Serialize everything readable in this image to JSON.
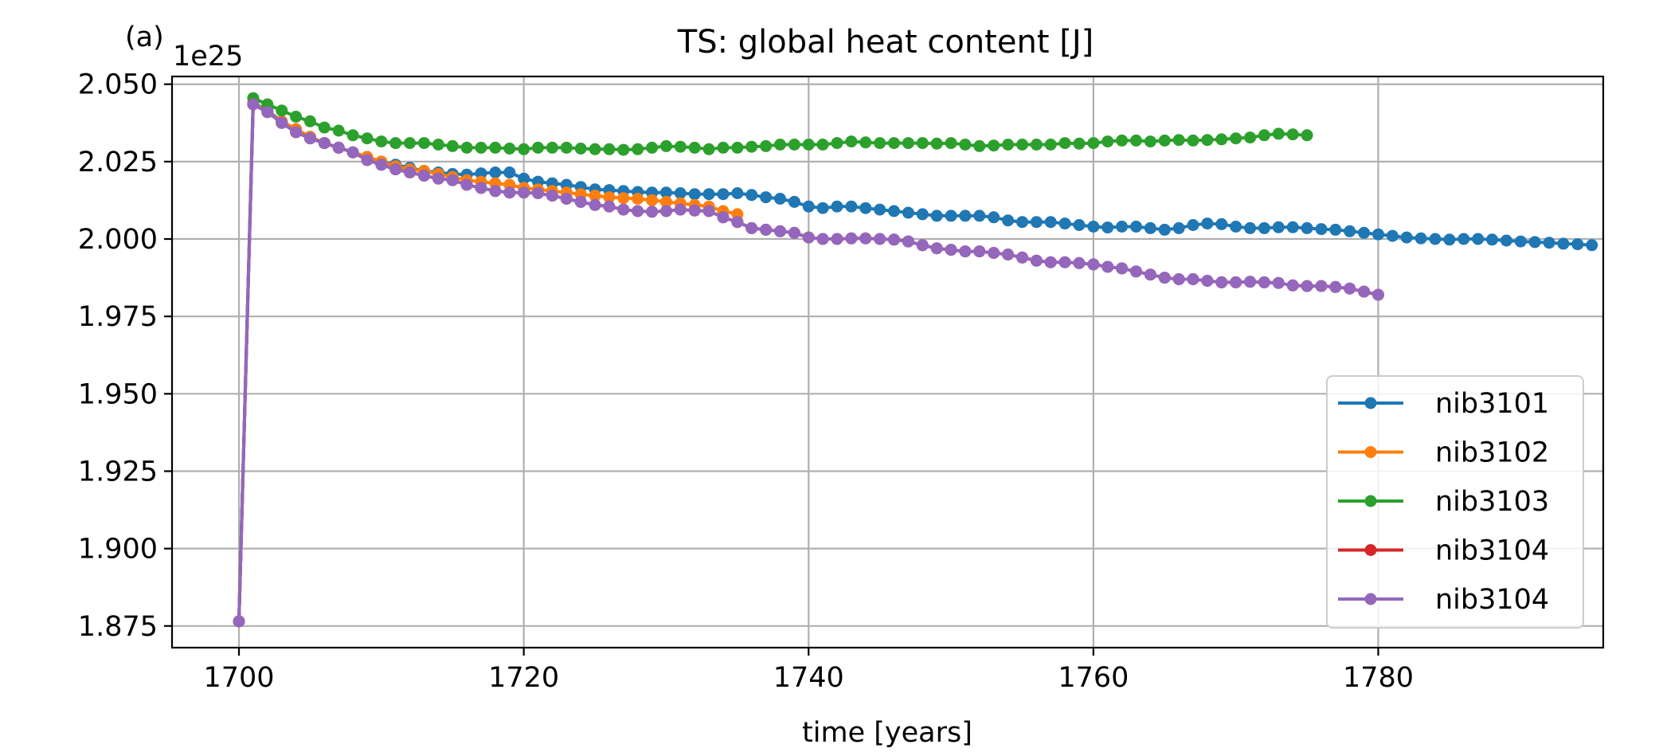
{
  "chart_data": {
    "type": "line",
    "panel_label": "(a)",
    "title": "TS: global heat content [J]",
    "xlabel": "time [years]",
    "ylabel": "",
    "y_offset_label": "1e25",
    "xlim": [
      1695.3,
      1795.8
    ],
    "ylim": [
      1.868,
      2.0525
    ],
    "x_ticks": [
      1700,
      1720,
      1740,
      1760,
      1780
    ],
    "x_tick_labels": [
      "1700",
      "1720",
      "1740",
      "1760",
      "1780"
    ],
    "y_ticks": [
      1.875,
      1.9,
      1.925,
      1.95,
      1.975,
      2.0,
      2.025,
      2.05
    ],
    "y_tick_labels": [
      "1.875",
      "1.900",
      "1.925",
      "1.950",
      "1.975",
      "2.000",
      "2.025",
      "2.050"
    ],
    "grid": true,
    "legend_position": "lower-right",
    "marker": "circle",
    "series": [
      {
        "name": "nib3101",
        "color": "#1f77b4",
        "x": [
          1700,
          1701,
          1702,
          1703,
          1704,
          1705,
          1706,
          1707,
          1708,
          1709,
          1710,
          1711,
          1712,
          1713,
          1714,
          1715,
          1716,
          1717,
          1718,
          1719,
          1720,
          1721,
          1722,
          1723,
          1724,
          1725,
          1726,
          1727,
          1728,
          1729,
          1730,
          1731,
          1732,
          1733,
          1734,
          1735,
          1736,
          1737,
          1738,
          1739,
          1740,
          1741,
          1742,
          1743,
          1744,
          1745,
          1746,
          1747,
          1748,
          1749,
          1750,
          1751,
          1752,
          1753,
          1754,
          1755,
          1756,
          1757,
          1758,
          1759,
          1760,
          1761,
          1762,
          1763,
          1764,
          1765,
          1766,
          1767,
          1768,
          1769,
          1770,
          1771,
          1772,
          1773,
          1774,
          1775,
          1776,
          1777,
          1778,
          1779,
          1780,
          1781,
          1782,
          1783,
          1784,
          1785,
          1786,
          1787,
          1788,
          1789,
          1790,
          1791,
          1792,
          1793,
          1794,
          1795
        ],
        "values": [
          1.8765,
          2.044,
          2.0415,
          2.038,
          2.0355,
          2.033,
          2.031,
          2.0295,
          2.028,
          2.0265,
          2.025,
          2.024,
          2.023,
          2.022,
          2.0215,
          2.021,
          2.0208,
          2.0212,
          2.0215,
          2.0215,
          2.0195,
          2.0185,
          2.018,
          2.0175,
          2.0168,
          2.016,
          2.0158,
          2.0155,
          2.0152,
          2.015,
          2.015,
          2.0148,
          2.0145,
          2.0145,
          2.0145,
          2.0148,
          2.0142,
          2.0135,
          2.013,
          2.012,
          2.0105,
          2.01,
          2.0105,
          2.0105,
          2.01,
          2.0095,
          2.009,
          2.0085,
          2.008,
          2.0075,
          2.0075,
          2.0075,
          2.0075,
          2.007,
          2.006,
          2.0055,
          2.0055,
          2.0055,
          2.005,
          2.0045,
          2.004,
          2.0037,
          2.004,
          2.004,
          2.0035,
          2.003,
          2.0035,
          2.0045,
          2.005,
          2.0048,
          2.004,
          2.0035,
          2.0035,
          2.0038,
          2.0038,
          2.0035,
          2.0032,
          2.003,
          2.0025,
          2.002,
          2.0015,
          2.001,
          2.0005,
          2.0002,
          2.0,
          1.9998,
          2.0,
          2.0,
          1.9998,
          1.9995,
          1.9992,
          1.999,
          1.9988,
          1.9985,
          1.9983,
          1.998
        ]
      },
      {
        "name": "nib3102",
        "color": "#ff7f0e",
        "x": [
          1700,
          1701,
          1702,
          1703,
          1704,
          1705,
          1706,
          1707,
          1708,
          1709,
          1710,
          1711,
          1712,
          1713,
          1714,
          1715,
          1716,
          1717,
          1718,
          1719,
          1720,
          1721,
          1722,
          1723,
          1724,
          1725,
          1726,
          1727,
          1728,
          1729,
          1730,
          1731,
          1732,
          1733,
          1734,
          1735
        ],
        "values": [
          1.8765,
          2.044,
          2.041,
          2.038,
          2.0355,
          2.033,
          2.031,
          2.0295,
          2.028,
          2.0265,
          2.025,
          2.0235,
          2.0225,
          2.022,
          2.021,
          2.02,
          2.019,
          2.0185,
          2.018,
          2.0175,
          2.0165,
          2.016,
          2.0155,
          2.015,
          2.0145,
          2.014,
          2.0135,
          2.0132,
          2.013,
          2.0125,
          2.012,
          2.0115,
          2.011,
          2.0105,
          2.009,
          2.008
        ]
      },
      {
        "name": "nib3103",
        "color": "#2ca02c",
        "x": [
          1700,
          1701,
          1702,
          1703,
          1704,
          1705,
          1706,
          1707,
          1708,
          1709,
          1710,
          1711,
          1712,
          1713,
          1714,
          1715,
          1716,
          1717,
          1718,
          1719,
          1720,
          1721,
          1722,
          1723,
          1724,
          1725,
          1726,
          1727,
          1728,
          1729,
          1730,
          1731,
          1732,
          1733,
          1734,
          1735,
          1736,
          1737,
          1738,
          1739,
          1740,
          1741,
          1742,
          1743,
          1744,
          1745,
          1746,
          1747,
          1748,
          1749,
          1750,
          1751,
          1752,
          1753,
          1754,
          1755,
          1756,
          1757,
          1758,
          1759,
          1760,
          1761,
          1762,
          1763,
          1764,
          1765,
          1766,
          1767,
          1768,
          1769,
          1770,
          1771,
          1772,
          1773,
          1774,
          1775
        ],
        "values": [
          1.8765,
          2.0455,
          2.0435,
          2.0415,
          2.0395,
          2.038,
          2.036,
          2.035,
          2.0335,
          2.0325,
          2.0315,
          2.031,
          2.031,
          2.031,
          2.0305,
          2.03,
          2.0295,
          2.0295,
          2.0295,
          2.0292,
          2.029,
          2.0295,
          2.0295,
          2.0295,
          2.0292,
          2.029,
          2.029,
          2.0288,
          2.029,
          2.0295,
          2.03,
          2.0298,
          2.0295,
          2.029,
          2.0295,
          2.0295,
          2.0298,
          2.03,
          2.0305,
          2.0305,
          2.0305,
          2.0305,
          2.031,
          2.0315,
          2.0312,
          2.031,
          2.031,
          2.031,
          2.031,
          2.0308,
          2.031,
          2.0305,
          2.03,
          2.0302,
          2.0305,
          2.0305,
          2.0305,
          2.0305,
          2.031,
          2.0308,
          2.031,
          2.0315,
          2.0318,
          2.0318,
          2.0315,
          2.0318,
          2.032,
          2.0318,
          2.032,
          2.0322,
          2.0325,
          2.0328,
          2.0335,
          2.034,
          2.0338,
          2.0335
        ]
      },
      {
        "name": "nib3104",
        "color": "#d62728",
        "x": [
          1700,
          1701,
          1702,
          1703,
          1704,
          1705,
          1706,
          1707,
          1708,
          1709,
          1710,
          1711,
          1712,
          1713,
          1714,
          1715,
          1716,
          1717,
          1718,
          1719,
          1720,
          1721,
          1722,
          1723,
          1724,
          1725,
          1726,
          1727,
          1728,
          1729,
          1730,
          1731,
          1732,
          1733,
          1734,
          1735,
          1736,
          1737,
          1738,
          1739,
          1740,
          1741,
          1742,
          1743,
          1744,
          1745,
          1746,
          1747,
          1748,
          1749,
          1750,
          1751,
          1752,
          1753,
          1754,
          1755,
          1756,
          1757,
          1758,
          1759,
          1760,
          1761,
          1762,
          1763,
          1764,
          1765,
          1766,
          1767,
          1768,
          1769,
          1770,
          1771,
          1772,
          1773,
          1774,
          1775,
          1776,
          1777,
          1778,
          1779,
          1780
        ],
        "values": [
          1.8765,
          2.0435,
          2.041,
          2.0375,
          2.0345,
          2.0325,
          2.031,
          2.0295,
          2.028,
          2.0255,
          2.024,
          2.0225,
          2.0215,
          2.0205,
          2.0195,
          2.019,
          2.0175,
          2.0165,
          2.0155,
          2.015,
          2.015,
          2.0148,
          2.014,
          2.013,
          2.012,
          2.011,
          2.0105,
          2.0095,
          2.009,
          2.0088,
          2.009,
          2.0095,
          2.0092,
          2.009,
          2.007,
          2.0055,
          2.0035,
          2.003,
          2.0025,
          2.002,
          2.0005,
          2.0,
          2.0,
          2.0002,
          2.0002,
          2.0,
          1.9998,
          1.9992,
          1.998,
          1.997,
          1.9965,
          1.996,
          1.996,
          1.9955,
          1.995,
          1.994,
          1.993,
          1.9925,
          1.9925,
          1.9922,
          1.9918,
          1.991,
          1.9905,
          1.9895,
          1.9885,
          1.9875,
          1.987,
          1.987,
          1.9865,
          1.986,
          1.986,
          1.9862,
          1.986,
          1.9858,
          1.985,
          1.9848,
          1.9848,
          1.9845,
          1.984,
          1.983,
          1.982
        ]
      },
      {
        "name": "nib3104",
        "color": "#9467bd",
        "x": [
          1700,
          1701,
          1702,
          1703,
          1704,
          1705,
          1706,
          1707,
          1708,
          1709,
          1710,
          1711,
          1712,
          1713,
          1714,
          1715,
          1716,
          1717,
          1718,
          1719,
          1720,
          1721,
          1722,
          1723,
          1724,
          1725,
          1726,
          1727,
          1728,
          1729,
          1730,
          1731,
          1732,
          1733,
          1734,
          1735,
          1736,
          1737,
          1738,
          1739,
          1740,
          1741,
          1742,
          1743,
          1744,
          1745,
          1746,
          1747,
          1748,
          1749,
          1750,
          1751,
          1752,
          1753,
          1754,
          1755,
          1756,
          1757,
          1758,
          1759,
          1760,
          1761,
          1762,
          1763,
          1764,
          1765,
          1766,
          1767,
          1768,
          1769,
          1770,
          1771,
          1772,
          1773,
          1774,
          1775,
          1776,
          1777,
          1778,
          1779,
          1780
        ],
        "values": [
          1.8765,
          2.0435,
          2.041,
          2.0375,
          2.0345,
          2.0325,
          2.031,
          2.0295,
          2.028,
          2.0255,
          2.024,
          2.0225,
          2.0215,
          2.0205,
          2.0195,
          2.019,
          2.0175,
          2.0165,
          2.0155,
          2.015,
          2.015,
          2.0148,
          2.014,
          2.013,
          2.012,
          2.011,
          2.0105,
          2.0095,
          2.009,
          2.0088,
          2.009,
          2.0095,
          2.0092,
          2.009,
          2.007,
          2.0055,
          2.0035,
          2.003,
          2.0025,
          2.002,
          2.0005,
          2.0,
          2.0,
          2.0002,
          2.0002,
          2.0,
          1.9998,
          1.9992,
          1.998,
          1.997,
          1.9965,
          1.996,
          1.996,
          1.9955,
          1.995,
          1.994,
          1.993,
          1.9925,
          1.9925,
          1.9922,
          1.9918,
          1.991,
          1.9905,
          1.9895,
          1.9885,
          1.9875,
          1.987,
          1.987,
          1.9865,
          1.986,
          1.986,
          1.9862,
          1.986,
          1.9858,
          1.985,
          1.9848,
          1.9848,
          1.9845,
          1.984,
          1.983,
          1.982
        ]
      }
    ]
  }
}
